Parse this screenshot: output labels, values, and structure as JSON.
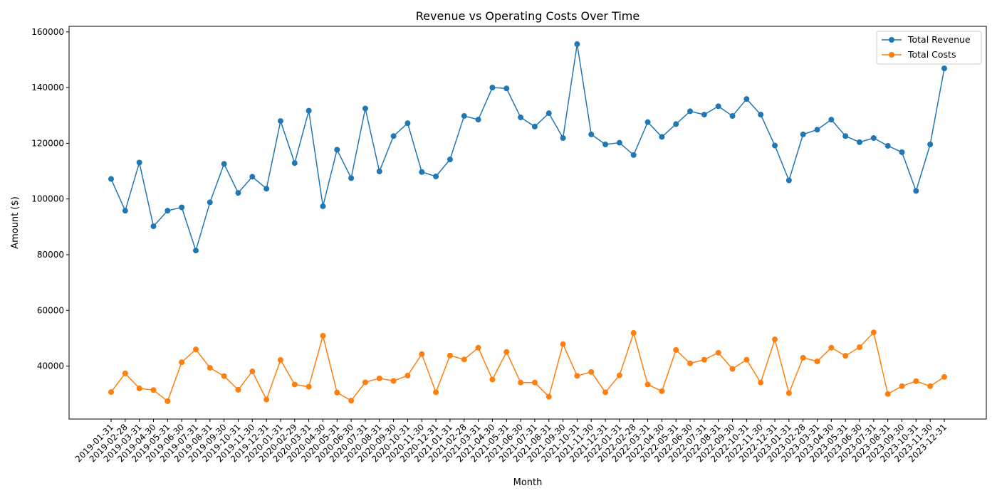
{
  "chart_data": {
    "type": "line",
    "title": "Revenue vs Operating Costs Over Time",
    "xlabel": "Month",
    "ylabel": "Amount ($)",
    "ylim": [
      21000,
      162000
    ],
    "yticks": [
      40000,
      60000,
      80000,
      100000,
      120000,
      140000,
      160000
    ],
    "legend_position": "top-right",
    "grid": false,
    "x": [
      "2019-01-31",
      "2019-02-28",
      "2019-03-31",
      "2019-04-30",
      "2019-05-31",
      "2019-06-30",
      "2019-07-31",
      "2019-08-31",
      "2019-09-30",
      "2019-10-31",
      "2019-11-30",
      "2019-12-31",
      "2020-01-31",
      "2020-02-29",
      "2020-03-31",
      "2020-04-30",
      "2020-05-31",
      "2020-06-30",
      "2020-07-31",
      "2020-08-31",
      "2020-09-30",
      "2020-10-31",
      "2020-11-30",
      "2020-12-31",
      "2021-01-31",
      "2021-02-28",
      "2021-03-31",
      "2021-04-30",
      "2021-05-31",
      "2021-06-30",
      "2021-07-31",
      "2021-08-31",
      "2021-09-30",
      "2021-10-31",
      "2021-11-30",
      "2021-12-31",
      "2022-01-31",
      "2022-02-28",
      "2022-03-31",
      "2022-04-30",
      "2022-05-31",
      "2022-06-30",
      "2022-07-31",
      "2022-08-31",
      "2022-09-30",
      "2022-10-31",
      "2022-11-30",
      "2022-12-31",
      "2023-01-31",
      "2023-02-28",
      "2023-03-31",
      "2023-04-30",
      "2023-05-31",
      "2023-06-30",
      "2023-07-31",
      "2023-08-31",
      "2023-09-30",
      "2023-10-31",
      "2023-11-30",
      "2023-12-31"
    ],
    "series": [
      {
        "name": "Total Revenue",
        "color": "#1f77b4",
        "values": [
          107200,
          95800,
          113100,
          90200,
          95800,
          97000,
          81500,
          98800,
          112600,
          102200,
          108000,
          103700,
          128000,
          112900,
          131700,
          97400,
          117700,
          107500,
          132500,
          109900,
          122600,
          127200,
          109700,
          108100,
          114200,
          129800,
          128500,
          140000,
          139700,
          129300,
          126000,
          130800,
          121900,
          155600,
          123200,
          119600,
          120200,
          115800,
          127600,
          122300,
          126900,
          131500,
          130300,
          133300,
          129800,
          135900,
          130300,
          119200,
          106700,
          123200,
          124900,
          128500,
          122600,
          120400,
          121900,
          119100,
          116800,
          102900,
          119600,
          146900
        ]
      },
      {
        "name": "Total Costs",
        "color": "#ff7f0e",
        "values": [
          30700,
          37400,
          32000,
          31400,
          27400,
          41400,
          46000,
          39400,
          36400,
          31500,
          38100,
          28000,
          42200,
          33400,
          32600,
          50900,
          30500,
          27600,
          34200,
          35600,
          34700,
          36600,
          44300,
          30600,
          43800,
          42400,
          46600,
          35200,
          45100,
          34100,
          34100,
          29000,
          47900,
          36500,
          37900,
          30600,
          36700,
          51900,
          33400,
          31000,
          45800,
          41000,
          42300,
          44800,
          39000,
          42300,
          34100,
          49600,
          30300,
          43000,
          41700,
          46600,
          43700,
          46800,
          52100,
          30000,
          32800,
          34600,
          32800,
          36100
        ]
      }
    ]
  }
}
